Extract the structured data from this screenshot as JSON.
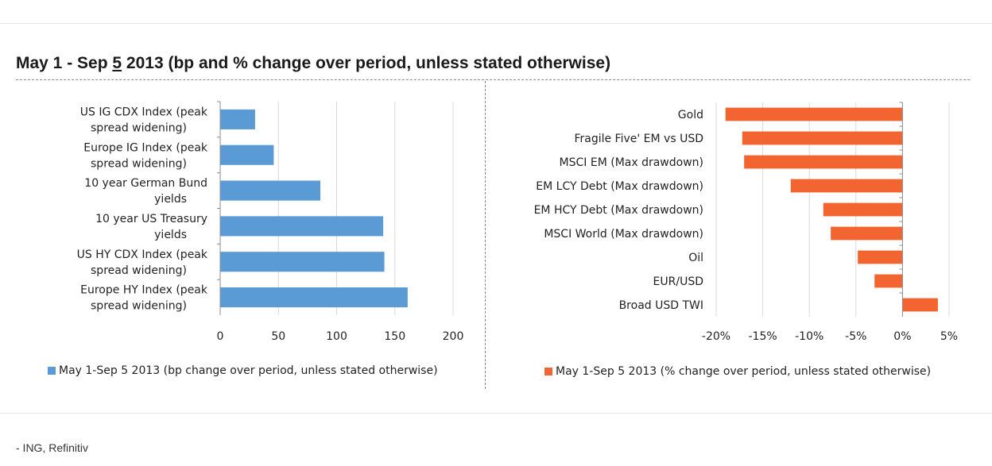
{
  "header": {
    "title_part1": "May 1 - Sep ",
    "title_underlined": "5",
    "title_part2": " 2013 (bp and % change over period, unless stated otherwise)"
  },
  "source": "- ING, Refinitiv",
  "chart_data": [
    {
      "type": "bar",
      "orientation": "horizontal",
      "categories": [
        "US IG CDX Index (peak spread widening)",
        "Europe IG Index (peak spread widening)",
        "10 year German Bund yields",
        "10 year US Treasury yields",
        "US HY CDX Index (peak spread widening)",
        "Europe HY Index (peak spread widening)"
      ],
      "series": [
        {
          "name": "May 1-Sep 5 2013 (bp change over period, unless stated otherwise)",
          "values": [
            30,
            46,
            86,
            140,
            141,
            161
          ]
        }
      ],
      "xlim": [
        0,
        200
      ],
      "xticks": [
        "0",
        "50",
        "100",
        "150",
        "200"
      ],
      "grid": true,
      "legend": "bottom",
      "color": "#5b9bd5"
    },
    {
      "type": "bar",
      "orientation": "horizontal",
      "categories": [
        "Gold",
        "Fragile Five' EM vs USD",
        "MSCI EM (Max drawdown)",
        "EM LCY Debt (Max drawdown)",
        "EM HCY Debt (Max drawdown)",
        "MSCI World (Max drawdown)",
        "Oil",
        "EUR/USD",
        "Broad USD TWI"
      ],
      "series": [
        {
          "name": "May 1-Sep 5 2013 (% change over period, unless stated otherwise)",
          "values": [
            -19,
            -17.2,
            -17,
            -12,
            -8.5,
            -7.7,
            -4.8,
            -3,
            3.8
          ]
        }
      ],
      "xlim": [
        -20,
        5
      ],
      "xticks": [
        "-20%",
        "-15%",
        "-10%",
        "-5%",
        "0%",
        "5%"
      ],
      "grid": true,
      "legend": "bottom",
      "color": "#f26531"
    }
  ]
}
